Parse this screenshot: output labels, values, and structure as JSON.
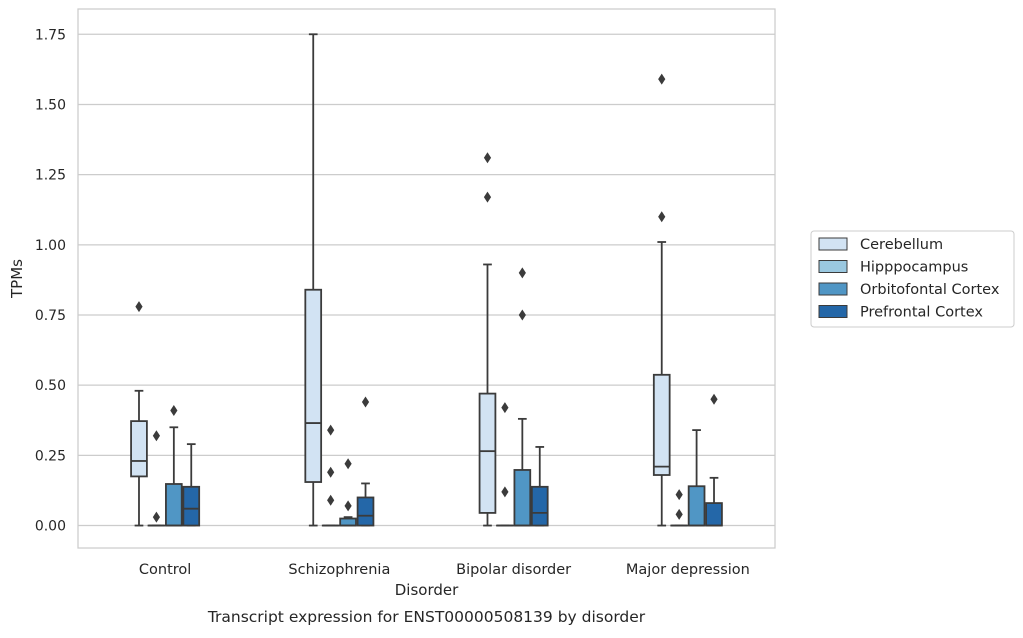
{
  "chart_data": {
    "type": "box",
    "title": "",
    "xlabel": "Disorder",
    "ylabel": "TPMs",
    "caption": "Transcript expression for ENST00000508139 by disorder",
    "ylim": [
      -0.08,
      1.84
    ],
    "yticks": [
      0.0,
      0.25,
      0.5,
      0.75,
      1.0,
      1.25,
      1.5,
      1.75
    ],
    "ytick_labels": [
      "0.00",
      "0.25",
      "0.50",
      "0.75",
      "1.00",
      "1.25",
      "1.50",
      "1.75"
    ],
    "grid": "horizontal",
    "legend_position": "right",
    "categories": [
      "Control",
      "Schizophrenia",
      "Bipolar disorder",
      "Major depression"
    ],
    "series": [
      {
        "name": "Cerebellum",
        "color": "#d2e3f3",
        "boxes": [
          {
            "whisker_low": 0.0,
            "q1": 0.175,
            "median": 0.23,
            "q3": 0.372,
            "whisker_high": 0.48,
            "outliers": [
              0.78
            ]
          },
          {
            "whisker_low": 0.0,
            "q1": 0.155,
            "median": 0.365,
            "q3": 0.84,
            "whisker_high": 1.75,
            "outliers": []
          },
          {
            "whisker_low": 0.0,
            "q1": 0.045,
            "median": 0.265,
            "q3": 0.47,
            "whisker_high": 0.93,
            "outliers": [
              1.17,
              1.31
            ]
          },
          {
            "whisker_low": 0.0,
            "q1": 0.18,
            "median": 0.21,
            "q3": 0.537,
            "whisker_high": 1.01,
            "outliers": [
              1.1,
              1.59
            ]
          }
        ]
      },
      {
        "name": "Hipppocampus",
        "color": "#9ac8e0",
        "boxes": [
          {
            "whisker_low": 0.0,
            "q1": 0.0,
            "median": 0.0,
            "q3": 0.0,
            "whisker_high": 0.0,
            "outliers": [
              0.03,
              0.32
            ]
          },
          {
            "whisker_low": 0.0,
            "q1": 0.0,
            "median": 0.0,
            "q3": 0.0,
            "whisker_high": 0.0,
            "outliers": [
              0.09,
              0.19,
              0.34
            ]
          },
          {
            "whisker_low": 0.0,
            "q1": 0.0,
            "median": 0.0,
            "q3": 0.0,
            "whisker_high": 0.0,
            "outliers": [
              0.12,
              0.42
            ]
          },
          {
            "whisker_low": 0.0,
            "q1": 0.0,
            "median": 0.0,
            "q3": 0.0,
            "whisker_high": 0.0,
            "outliers": [
              0.04,
              0.11
            ]
          }
        ]
      },
      {
        "name": "Orbitofontal Cortex",
        "color": "#5096c5",
        "boxes": [
          {
            "whisker_low": 0.0,
            "q1": 0.0,
            "median": 0.0,
            "q3": 0.148,
            "whisker_high": 0.35,
            "outliers": [
              0.41
            ]
          },
          {
            "whisker_low": 0.0,
            "q1": 0.0,
            "median": 0.0,
            "q3": 0.025,
            "whisker_high": 0.03,
            "outliers": [
              0.07,
              0.22
            ]
          },
          {
            "whisker_low": 0.0,
            "q1": 0.0,
            "median": 0.0,
            "q3": 0.198,
            "whisker_high": 0.38,
            "outliers": [
              0.75,
              0.9
            ]
          },
          {
            "whisker_low": 0.0,
            "q1": 0.0,
            "median": 0.0,
            "q3": 0.14,
            "whisker_high": 0.34,
            "outliers": []
          }
        ]
      },
      {
        "name": "Prefrontal Cortex",
        "color": "#2467a8",
        "boxes": [
          {
            "whisker_low": 0.0,
            "q1": 0.0,
            "median": 0.06,
            "q3": 0.138,
            "whisker_high": 0.29,
            "outliers": []
          },
          {
            "whisker_low": 0.0,
            "q1": 0.0,
            "median": 0.035,
            "q3": 0.1,
            "whisker_high": 0.15,
            "outliers": [
              0.44
            ]
          },
          {
            "whisker_low": 0.0,
            "q1": 0.0,
            "median": 0.045,
            "q3": 0.138,
            "whisker_high": 0.28,
            "outliers": []
          },
          {
            "whisker_low": 0.0,
            "q1": 0.0,
            "median": 0.0,
            "q3": 0.08,
            "whisker_high": 0.17,
            "outliers": [
              0.45
            ]
          }
        ]
      }
    ]
  }
}
